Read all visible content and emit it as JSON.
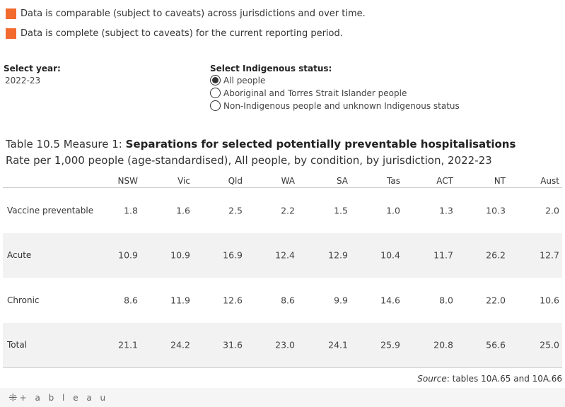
{
  "legend": {
    "items": [
      {
        "text": "Data is comparable (subject to caveats) across jurisdictions and over time."
      },
      {
        "text": "Data is complete (subject to caveats) for the current reporting period."
      }
    ],
    "color": "#f26a2e"
  },
  "year_filter": {
    "label": "Select year:",
    "value": "2022-23"
  },
  "indigenous_filter": {
    "label": "Select Indigenous status:",
    "options": [
      {
        "label": "All people",
        "selected": true
      },
      {
        "label": "Aboriginal and Torres Strait Islander people",
        "selected": false
      },
      {
        "label": "Non-Indigenous people and unknown Indigenous status",
        "selected": false
      }
    ]
  },
  "title": {
    "prefix": "Table 10.5 Measure 1: ",
    "main": "Separations for selected potentially preventable hospitalisations",
    "subtitle": "Rate per 1,000 people (age-standardised), All people, by condition, by jurisdiction, 2022-23"
  },
  "table": {
    "columns": [
      "NSW",
      "Vic",
      "Qld",
      "WA",
      "SA",
      "Tas",
      "ACT",
      "NT",
      "Aust"
    ],
    "rows": [
      {
        "label": "Vaccine preventable",
        "values": [
          "1.8",
          "1.6",
          "2.5",
          "2.2",
          "1.5",
          "1.0",
          "1.3",
          "10.3",
          "2.0"
        ]
      },
      {
        "label": "Acute",
        "values": [
          "10.9",
          "10.9",
          "16.9",
          "12.4",
          "12.9",
          "10.4",
          "11.7",
          "26.2",
          "12.7"
        ]
      },
      {
        "label": "Chronic",
        "values": [
          "8.6",
          "11.9",
          "12.6",
          "8.6",
          "9.9",
          "14.6",
          "8.0",
          "22.0",
          "10.6"
        ]
      },
      {
        "label": "Total",
        "values": [
          "21.1",
          "24.2",
          "31.6",
          "23.0",
          "24.1",
          "25.9",
          "20.8",
          "56.6",
          "25.0"
        ]
      }
    ]
  },
  "source": {
    "label": "Source",
    "text": ": tables 10A.65 and 10A.66"
  },
  "footer": {
    "logo_plus": "⁜",
    "logo_text": "+ a b l e a u"
  }
}
